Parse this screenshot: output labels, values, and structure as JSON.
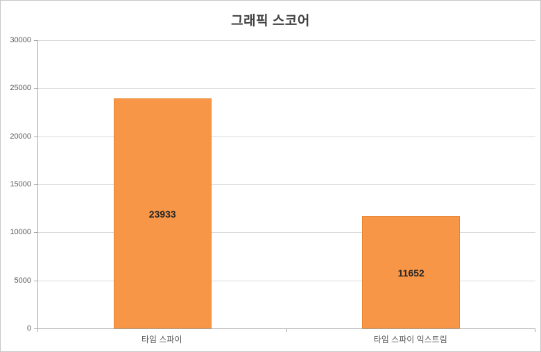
{
  "chart_data": {
    "type": "bar",
    "title": "그래픽 스코어",
    "categories": [
      "타임 스파이",
      "타임 스파이 익스트림"
    ],
    "values": [
      23933,
      11652
    ],
    "data_labels": [
      "23933",
      "11652"
    ],
    "data_label_position": "center",
    "xlabel": "",
    "ylabel": "",
    "ylim": [
      0,
      30000
    ],
    "ytick_interval": 5000,
    "yticks": [
      0,
      5000,
      10000,
      15000,
      20000,
      25000,
      30000
    ],
    "ytick_labels": [
      "0",
      "5000",
      "10000",
      "15000",
      "20000",
      "25000",
      "30000"
    ],
    "grid": true,
    "legend": false
  },
  "colors": {
    "background": "#FFFFFF",
    "frame_border": "#C6C6C6",
    "gridline": "#D9D9D9",
    "axis_line": "#A6A6A6",
    "tick_label_text": "#595959",
    "title_text": "#404040",
    "bar_fill": "#F79646",
    "bar_border": "#E8862F",
    "data_label_text": "#262626"
  }
}
